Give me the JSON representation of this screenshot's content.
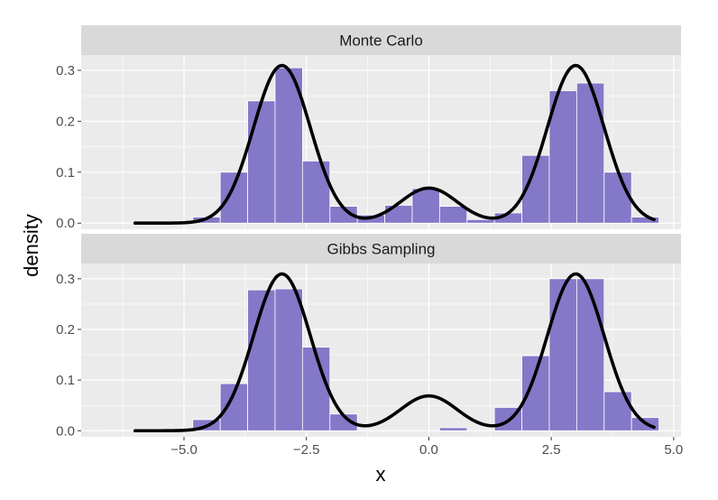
{
  "chart_data": {
    "type": "bar",
    "xlabel": "x",
    "ylabel": "density",
    "xlim": [
      -7.1,
      5.15
    ],
    "ylim": [
      -0.012,
      0.33
    ],
    "x_ticks": [
      -5.0,
      -2.5,
      0.0,
      2.5,
      5.0
    ],
    "x_tick_labels": [
      "−5.0",
      "−2.5",
      "0.0",
      "2.5",
      "5.0"
    ],
    "y_ticks": [
      0.0,
      0.1,
      0.2,
      0.3
    ],
    "y_tick_labels": [
      "0.0",
      "0.1",
      "0.2",
      "0.3"
    ],
    "grid": true,
    "colors": {
      "bar_fill": "#8478c8",
      "bar_outline": "#ffffff",
      "panel_bg": "#ebebeb",
      "strip_bg": "#d9d9d9",
      "curve": "#000000"
    },
    "density_curve": {
      "mixture": [
        {
          "weight": 0.45,
          "mean": -3.0,
          "sd": 0.58
        },
        {
          "weight": 0.1,
          "mean": 0.0,
          "sd": 0.58
        },
        {
          "weight": 0.45,
          "mean": 3.0,
          "sd": 0.58
        }
      ],
      "x_range": [
        -6.0,
        4.6
      ]
    },
    "panels": [
      {
        "strip_label": "Monte Carlo",
        "bins": [
          {
            "x0": -4.82,
            "x1": -4.26,
            "density": 0.012
          },
          {
            "x0": -4.26,
            "x1": -3.7,
            "density": 0.1
          },
          {
            "x0": -3.7,
            "x1": -3.14,
            "density": 0.24
          },
          {
            "x0": -3.14,
            "x1": -2.58,
            "density": 0.305
          },
          {
            "x0": -2.58,
            "x1": -2.02,
            "density": 0.122
          },
          {
            "x0": -2.02,
            "x1": -1.46,
            "density": 0.033
          },
          {
            "x0": -1.46,
            "x1": -0.9,
            "density": 0.016
          },
          {
            "x0": -0.9,
            "x1": -0.34,
            "density": 0.035
          },
          {
            "x0": -0.34,
            "x1": 0.22,
            "density": 0.068
          },
          {
            "x0": 0.22,
            "x1": 0.78,
            "density": 0.033
          },
          {
            "x0": 0.78,
            "x1": 1.34,
            "density": 0.007
          },
          {
            "x0": 1.34,
            "x1": 1.9,
            "density": 0.02
          },
          {
            "x0": 1.9,
            "x1": 2.46,
            "density": 0.133
          },
          {
            "x0": 2.46,
            "x1": 3.02,
            "density": 0.26
          },
          {
            "x0": 3.02,
            "x1": 3.58,
            "density": 0.275
          },
          {
            "x0": 3.58,
            "x1": 4.14,
            "density": 0.1
          },
          {
            "x0": 4.14,
            "x1": 4.7,
            "density": 0.012
          }
        ]
      },
      {
        "strip_label": "Gibbs Sampling",
        "bins": [
          {
            "x0": -6.5,
            "x1": -5.94,
            "density": 0.001
          },
          {
            "x0": -4.82,
            "x1": -4.26,
            "density": 0.022
          },
          {
            "x0": -4.26,
            "x1": -3.7,
            "density": 0.093
          },
          {
            "x0": -3.7,
            "x1": -3.14,
            "density": 0.278
          },
          {
            "x0": -3.14,
            "x1": -2.58,
            "density": 0.28
          },
          {
            "x0": -2.58,
            "x1": -2.02,
            "density": 0.165
          },
          {
            "x0": -2.02,
            "x1": -1.46,
            "density": 0.033
          },
          {
            "x0": 0.22,
            "x1": 0.78,
            "density": 0.006
          },
          {
            "x0": 1.34,
            "x1": 1.9,
            "density": 0.046
          },
          {
            "x0": 1.9,
            "x1": 2.46,
            "density": 0.148
          },
          {
            "x0": 2.46,
            "x1": 3.02,
            "density": 0.3
          },
          {
            "x0": 3.02,
            "x1": 3.58,
            "density": 0.3
          },
          {
            "x0": 3.58,
            "x1": 4.14,
            "density": 0.077
          },
          {
            "x0": 4.14,
            "x1": 4.7,
            "density": 0.026
          }
        ]
      }
    ]
  }
}
